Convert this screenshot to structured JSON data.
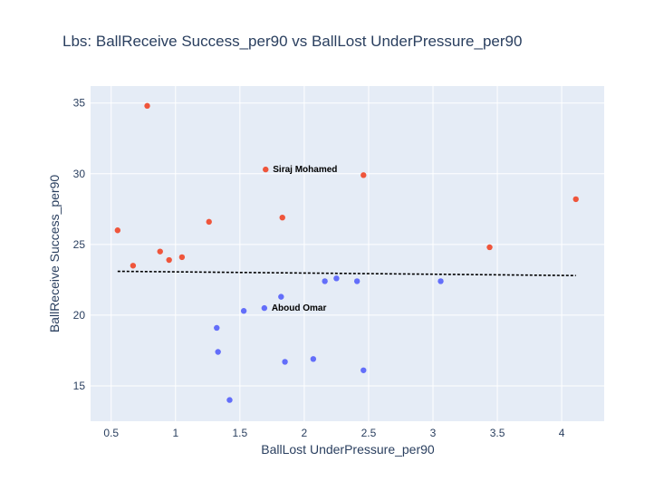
{
  "chart_data": {
    "type": "scatter",
    "title": "Lbs: BallReceive Success_per90 vs BallLost UnderPressure_per90",
    "xlabel": "BallLost UnderPressure_per90",
    "ylabel": "BallReceive Success_per90",
    "xlim": [
      0.34,
      4.33
    ],
    "ylim": [
      12.5,
      36.2
    ],
    "xticks": [
      0.5,
      1,
      1.5,
      2,
      2.5,
      3,
      3.5,
      4
    ],
    "xtick_labels": [
      "0.5",
      "1",
      "1.5",
      "2",
      "2.5",
      "3",
      "3.5",
      "4"
    ],
    "yticks": [
      15,
      20,
      25,
      30,
      35
    ],
    "ytick_labels": [
      "15",
      "20",
      "25",
      "30",
      "35"
    ],
    "grid": true,
    "legend": "none",
    "colors": {
      "red": "#ef553b",
      "blue": "#636efa",
      "background": "#e5ecf6",
      "trend": "#000000"
    },
    "series": [
      {
        "color": "red",
        "points": [
          {
            "x": 0.55,
            "y": 26.0
          },
          {
            "x": 0.67,
            "y": 23.5
          },
          {
            "x": 0.78,
            "y": 34.8
          },
          {
            "x": 0.88,
            "y": 24.5
          },
          {
            "x": 0.95,
            "y": 23.9
          },
          {
            "x": 1.05,
            "y": 24.1
          },
          {
            "x": 1.26,
            "y": 26.6
          },
          {
            "x": 1.7,
            "y": 30.3
          },
          {
            "x": 1.83,
            "y": 26.9
          },
          {
            "x": 2.46,
            "y": 29.9
          },
          {
            "x": 3.44,
            "y": 24.8
          },
          {
            "x": 4.11,
            "y": 28.2
          }
        ]
      },
      {
        "color": "blue",
        "points": [
          {
            "x": 1.32,
            "y": 19.1
          },
          {
            "x": 1.33,
            "y": 17.4
          },
          {
            "x": 1.42,
            "y": 14.0
          },
          {
            "x": 1.53,
            "y": 20.3
          },
          {
            "x": 1.69,
            "y": 20.5
          },
          {
            "x": 1.82,
            "y": 21.3
          },
          {
            "x": 1.85,
            "y": 16.7
          },
          {
            "x": 2.07,
            "y": 16.9
          },
          {
            "x": 2.16,
            "y": 22.4
          },
          {
            "x": 2.25,
            "y": 22.6
          },
          {
            "x": 2.41,
            "y": 22.4
          },
          {
            "x": 2.46,
            "y": 16.1
          },
          {
            "x": 3.06,
            "y": 22.4
          }
        ]
      }
    ],
    "trendline": {
      "x1": 0.55,
      "y1": 23.1,
      "x2": 4.11,
      "y2": 22.8
    },
    "annotations": [
      {
        "text": "Siraj Mohamed",
        "x": 1.7,
        "y": 30.3
      },
      {
        "text": "Aboud Omar",
        "x": 1.69,
        "y": 20.5
      }
    ]
  }
}
